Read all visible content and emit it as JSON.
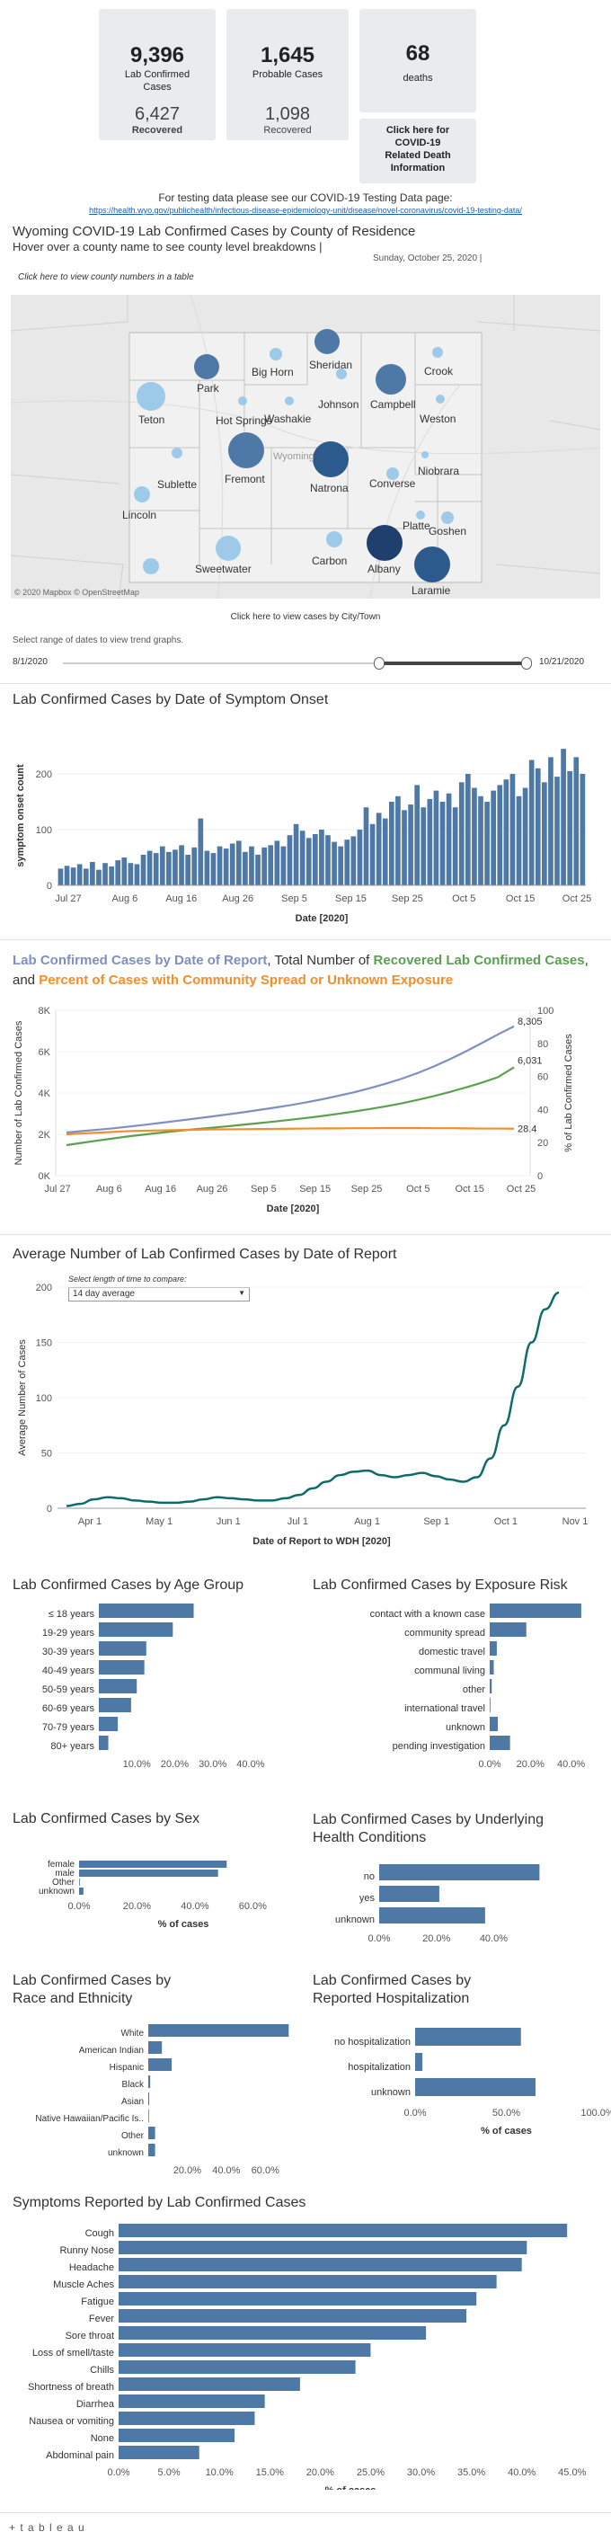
{
  "cards": {
    "confirmed": {
      "value": "9,396",
      "label1": "Lab Confirmed",
      "label2": "Cases"
    },
    "recovered": {
      "value": "6,427",
      "label": "Recovered"
    },
    "probable": {
      "value": "1,645",
      "label": "Probable Cases"
    },
    "probable_recovered": {
      "value": "1,098",
      "label": "Recovered"
    },
    "deaths": {
      "value": "68",
      "label": "deaths"
    },
    "death_info": {
      "line1": "Click here for",
      "line2": "COVID-19",
      "line3": "Related Death",
      "line4": "Information"
    }
  },
  "testing": {
    "text": "For testing data please see our COVID-19 Testing Data page:",
    "url": "https://health.wyo.gov/publichealth/infectious-disease-epidemiology-unit/disease/novel-coronavirus/covid-19-testing-data/"
  },
  "map": {
    "title": "Wyoming COVID-19 Lab Confirmed Cases by County of Residence",
    "hover": "Hover over a county name to see county level breakdowns |",
    "date": "Sunday, October 25, 2020 |",
    "table_link": "Click here to view county numbers in a table",
    "attribution": "© 2020 Mapbox  © OpenStreetMap",
    "state_label": "Wyoming",
    "counties": [
      "Park",
      "Big Horn",
      "Sheridan",
      "Crook",
      "Teton",
      "Hot Springs",
      "Johnson",
      "Campbell",
      "Weston",
      "Washakie",
      "Fremont",
      "Natrona",
      "Niobrara",
      "Sublette",
      "Converse",
      "Lincoln",
      "Platte",
      "Goshen",
      "Sweetwater",
      "Carbon",
      "Albany",
      "Laramie"
    ],
    "citytown_link": "Click here to view cases by City/Town"
  },
  "range": {
    "label": "Select range of dates to view trend graphs.",
    "start": "8/1/2020",
    "end": "10/21/2020"
  },
  "colors": {
    "bar": "#4e79a7",
    "light_bubble": "#9ecae9",
    "recovered": "#59a14f",
    "community": "#f28e2b",
    "total": "#7f8fc1",
    "teal": "#0e6b6b"
  },
  "chart_data": [
    {
      "type": "bar",
      "title": "Lab Confirmed Cases by Date of Symptom Onset",
      "xlabel": "Date [2020]",
      "ylabel": "symptom onset count",
      "ylim": [
        0,
        250
      ],
      "yticks": [
        0,
        100,
        200
      ],
      "xticks": [
        "Jul 27",
        "Aug 6",
        "Aug 16",
        "Aug 26",
        "Sep 5",
        "Sep 15",
        "Sep 25",
        "Oct 5",
        "Oct 15",
        "Oct 25"
      ],
      "values": [
        30,
        35,
        32,
        38,
        30,
        42,
        28,
        40,
        34,
        45,
        50,
        40,
        38,
        55,
        62,
        58,
        70,
        60,
        64,
        72,
        55,
        68,
        120,
        62,
        58,
        70,
        66,
        75,
        80,
        60,
        70,
        55,
        68,
        72,
        80,
        70,
        90,
        110,
        98,
        85,
        92,
        100,
        90,
        78,
        70,
        82,
        88,
        100,
        140,
        110,
        130,
        120,
        150,
        160,
        135,
        145,
        180,
        140,
        155,
        170,
        150,
        165,
        140,
        185,
        200,
        175,
        160,
        150,
        170,
        180,
        190,
        200,
        160,
        175,
        225,
        210,
        185,
        230,
        195,
        245,
        205,
        230,
        200
      ]
    },
    {
      "type": "line",
      "title": "Lab Confirmed Cases by Date of Report",
      "title_mid": ", Total Number of ",
      "title_recovered": "Recovered Lab Confirmed Cases",
      "title_and": ", and ",
      "title_community": "Percent of Cases with Community Spread or Unknown Exposure",
      "xlabel": "Date [2020]",
      "ylabel_left": "Number of Lab Confirmed Cases",
      "ylabel_right": "% of Lab Confirmed Cases",
      "yticks_left": [
        "0K",
        "2K",
        "4K",
        "6K",
        "8K"
      ],
      "yticks_right": [
        "0",
        "20",
        "40",
        "60",
        "80",
        "100"
      ],
      "xticks": [
        "Jul 27",
        "Aug 6",
        "Aug 16",
        "Aug 26",
        "Sep 5",
        "Sep 15",
        "Sep 25",
        "Oct 5",
        "Oct 15",
        "Oct 25"
      ],
      "series": [
        {
          "name": "Lab Confirmed Cases",
          "values": [
            2400,
            2480,
            2560,
            2640,
            2740,
            2840,
            2950,
            3060,
            3170,
            3280,
            3400,
            3520,
            3650,
            3780,
            3920,
            4080,
            4250,
            4440,
            4640,
            4870,
            5120,
            5400,
            5720,
            6080,
            6480,
            6920,
            7380,
            7860,
            8305
          ]
        },
        {
          "name": "Recovered Lab Confirmed Cases",
          "values": [
            1700,
            1830,
            1960,
            2080,
            2200,
            2300,
            2400,
            2490,
            2580,
            2660,
            2740,
            2830,
            2920,
            3010,
            3110,
            3210,
            3320,
            3440,
            3570,
            3710,
            3860,
            4030,
            4220,
            4430,
            4660,
            4910,
            5180,
            5480,
            6031
          ]
        },
        {
          "name": "Percent of Cases with Community Spread or Unknown Exposure",
          "values": [
            25,
            25.5,
            26,
            26.5,
            27,
            27.2,
            27.4,
            27.6,
            27.8,
            28,
            28,
            28.1,
            28.2,
            28.3,
            28.4,
            28.5,
            28.6,
            28.6,
            28.7,
            28.7,
            28.8,
            28.8,
            28.8,
            28.7,
            28.7,
            28.6,
            28.5,
            28.5,
            28.4
          ]
        }
      ],
      "end_labels": [
        "8,305",
        "6,031",
        "28.4"
      ]
    },
    {
      "type": "line",
      "title": "Average Number of Lab Confirmed Cases by Date of Report",
      "control_label": "Select length of time to compare:",
      "control_value": "14 day average",
      "xlabel": "Date of Report to WDH [2020]",
      "ylabel": "Average Number of Cases",
      "yticks": [
        0,
        50,
        100,
        150,
        200
      ],
      "xticks": [
        "Apr 1",
        "May 1",
        "Jun 1",
        "Jul 1",
        "Aug 1",
        "Sep 1",
        "Oct 1",
        "Nov 1"
      ],
      "values": [
        2,
        4,
        8,
        10,
        9,
        7,
        6,
        5,
        5,
        6,
        8,
        10,
        9,
        8,
        7,
        7,
        9,
        12,
        18,
        24,
        30,
        33,
        34,
        30,
        28,
        30,
        32,
        29,
        26,
        24,
        28,
        45,
        75,
        110,
        150,
        180,
        195
      ]
    },
    {
      "type": "bar",
      "title": "Lab Confirmed Cases by Age Group",
      "categories": [
        "≤ 18 years",
        "19-29 years",
        "30-39 years",
        "40-49 years",
        "50-59 years",
        "60-69 years",
        "70-79 years",
        "80+ years"
      ],
      "values": [
        25,
        19.5,
        12.5,
        12,
        10,
        8.5,
        5,
        2.5
      ],
      "xticks": [
        "10.0%",
        "20.0%",
        "30.0%",
        "40.0%"
      ]
    },
    {
      "type": "bar",
      "title": "Lab Confirmed Cases by Exposure Risk",
      "categories": [
        "contact with a known case",
        "community spread",
        "domestic travel",
        "communal living",
        "other",
        "international travel",
        "unknown",
        "pending investigation"
      ],
      "values": [
        45,
        18,
        3.5,
        2,
        1,
        0.3,
        4,
        10
      ],
      "xticks": [
        "0.0%",
        "20.0%",
        "40.0%"
      ]
    },
    {
      "type": "bar",
      "title": "Lab Confirmed Cases by Sex",
      "categories": [
        "female",
        "male",
        "Other",
        "unknown"
      ],
      "values": [
        51,
        48,
        0.2,
        1.5
      ],
      "xticks": [
        "0.0%",
        "20.0%",
        "40.0%",
        "60.0%"
      ],
      "xlabel": "% of cases"
    },
    {
      "type": "bar",
      "title": "Lab Confirmed Cases by Underlying Health Conditions",
      "categories": [
        "no",
        "yes",
        "unknown"
      ],
      "values": [
        56,
        21,
        37
      ],
      "xticks": [
        "0.0%",
        "20.0%",
        "40.0%"
      ]
    },
    {
      "type": "bar",
      "title": "Lab Confirmed Cases by Race and Ethnicity",
      "categories": [
        "White",
        "American Indian",
        "Hispanic",
        "Black",
        "Asian",
        "Native Hawaiian/Pacific Is..",
        "Other",
        "unknown"
      ],
      "values": [
        72,
        7,
        12,
        1,
        0.5,
        0.3,
        3.5,
        3.5
      ],
      "xticks": [
        "20.0%",
        "40.0%",
        "60.0%"
      ]
    },
    {
      "type": "bar",
      "title": "Lab Confirmed Cases by Reported Hospitalization",
      "categories": [
        "no hospitalization",
        "hospitalization",
        "unknown"
      ],
      "values": [
        58,
        4,
        66
      ],
      "xticks": [
        "0.0%",
        "50.0%",
        "100.0%"
      ],
      "xlabel": "% of cases"
    },
    {
      "type": "bar",
      "title": "Symptoms Reported by Lab Confirmed Cases",
      "categories": [
        "Cough",
        "Runny Nose",
        "Headache",
        "Muscle Aches",
        "Fatigue",
        "Fever",
        "Sore throat",
        "Loss of smell/taste",
        "Chills",
        "Shortness of breath",
        "Diarrhea",
        "Nausea or vomiting",
        "None",
        "Abdominal pain"
      ],
      "values": [
        44.5,
        40.5,
        40,
        37.5,
        35.5,
        34.5,
        30.5,
        25,
        23.5,
        18,
        14.5,
        13.5,
        11.5,
        8
      ],
      "xticks": [
        "0.0%",
        "5.0%",
        "10.0%",
        "15.0%",
        "20.0%",
        "25.0%",
        "30.0%",
        "35.0%",
        "40.0%",
        "45.0%"
      ],
      "xlabel": "% of cases"
    }
  ],
  "footer": {
    "brand": "+ t a b l e a u"
  }
}
